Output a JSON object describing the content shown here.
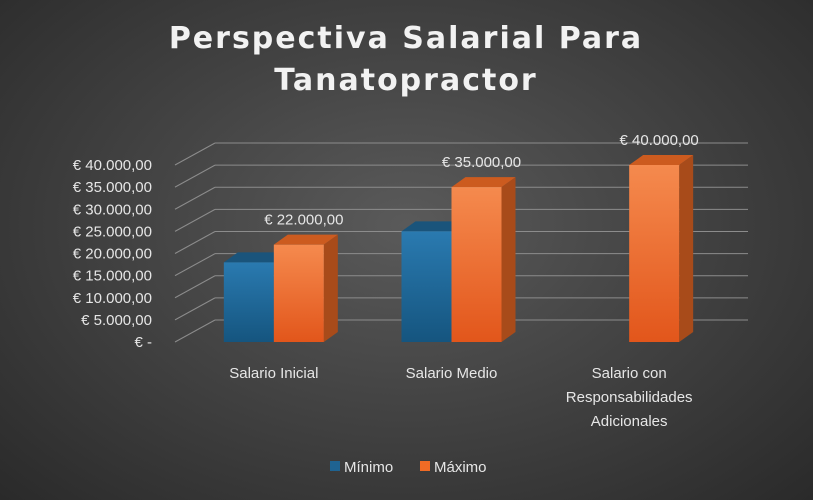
{
  "colors": {
    "minimo": "#1f6391",
    "maximo": "#f06b25",
    "text": "#e6e6e6",
    "gridline": "#8c8c8c"
  },
  "chart_data": {
    "type": "bar",
    "title": "Perspectiva Salarial Para Tanatopractor",
    "title_lines": [
      "Perspectiva Salarial Para",
      "Tanatopractor"
    ],
    "categories": [
      "Salario Inicial",
      "Salario Medio",
      "Salario con Responsabilidades Adicionales"
    ],
    "category_lines": [
      [
        "Salario Inicial"
      ],
      [
        "Salario Medio"
      ],
      [
        "Salario con",
        "Responsabilidades",
        "Adicionales"
      ]
    ],
    "series": [
      {
        "name": "Mínimo",
        "values": [
          18000,
          25000,
          null
        ]
      },
      {
        "name": "Máximo",
        "values": [
          22000,
          35000,
          40000
        ]
      }
    ],
    "data_labels": [
      "€ 22.000,00",
      "€ 35.000,00",
      "€ 40.000,00"
    ],
    "ylim": [
      0,
      40000
    ],
    "yticks": [
      0,
      5000,
      10000,
      15000,
      20000,
      25000,
      30000,
      35000,
      40000
    ],
    "ytick_labels": [
      "€ -",
      "€ 5.000,00",
      "€ 10.000,00",
      "€ 15.000,00",
      "€ 20.000,00",
      "€ 25.000,00",
      "€ 30.000,00",
      "€ 35.000,00",
      "€ 40.000,00"
    ],
    "grid": true,
    "legend_position": "bottom",
    "three_d": true
  }
}
